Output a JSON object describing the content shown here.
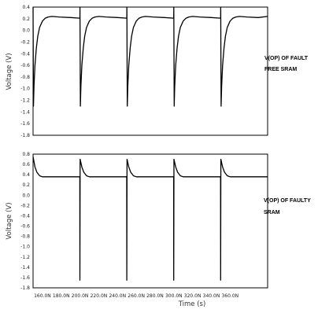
{
  "chart_data": [
    {
      "type": "line",
      "ylabel": "Voltage (V)",
      "ylim": [
        -1.8,
        0.4
      ],
      "yticks": [
        "0.4",
        "0.2",
        "0.0",
        "-0.2",
        "-0.4",
        "-0.6",
        "-0.8",
        "-1.0",
        "-1.2",
        "-1.4",
        "-1.6",
        "-1.8"
      ],
      "xlim_ns": [
        150,
        400
      ],
      "annotation": [
        "V(OP) OF FAULT",
        "FREE SRAM"
      ],
      "series": [
        {
          "color": "#000000",
          "x_ns": [
            150.0,
            150.4,
            151.0,
            152.0,
            153.5,
            155.0,
            157.0,
            160.0,
            163.0,
            166.0,
            170.0,
            178.0,
            190.0,
            199.9,
            200.0,
            200.4,
            201.0,
            202.0,
            203.5,
            205.0,
            207.0,
            210.0,
            213.0,
            216.0,
            220.0,
            228.0,
            240.0,
            249.9,
            250.0,
            250.4,
            251.0,
            252.0,
            253.5,
            255.0,
            257.0,
            260.0,
            263.0,
            266.0,
            270.0,
            278.0,
            290.0,
            299.9,
            300.0,
            300.4,
            301.0,
            302.0,
            303.5,
            305.0,
            307.0,
            310.0,
            313.0,
            316.0,
            320.0,
            328.0,
            340.0,
            349.9,
            350.0,
            350.4,
            351.0,
            352.0,
            353.5,
            355.0,
            357.0,
            360.0,
            363.0,
            366.0,
            370.0,
            378.0,
            390.0,
            400.0
          ],
          "y": [
            0.4,
            -1.3,
            -0.95,
            -0.6,
            -0.3,
            -0.1,
            0.05,
            0.16,
            0.21,
            0.23,
            0.24,
            0.23,
            0.22,
            0.21,
            0.4,
            -1.3,
            -0.95,
            -0.6,
            -0.3,
            -0.1,
            0.05,
            0.16,
            0.21,
            0.23,
            0.24,
            0.23,
            0.22,
            0.21,
            0.4,
            -1.3,
            -0.95,
            -0.6,
            -0.3,
            -0.1,
            0.05,
            0.16,
            0.21,
            0.23,
            0.24,
            0.23,
            0.22,
            0.21,
            0.4,
            -1.3,
            -0.95,
            -0.6,
            -0.3,
            -0.1,
            0.05,
            0.16,
            0.21,
            0.23,
            0.24,
            0.23,
            0.22,
            0.21,
            0.4,
            -1.3,
            -0.95,
            -0.6,
            -0.3,
            -0.1,
            0.05,
            0.16,
            0.21,
            0.23,
            0.24,
            0.23,
            0.22,
            0.24
          ]
        }
      ]
    },
    {
      "type": "line",
      "ylabel": "Voltage (V)",
      "xlabel": "Time (s)",
      "ylim": [
        -1.8,
        0.8
      ],
      "yticks": [
        "0.8",
        "0.6",
        "0.4",
        "0.2",
        "0.0",
        "-0.2",
        "-0.4",
        "-0.6",
        "-0.8",
        "-1.0",
        "-1.2",
        "-1.4",
        "-1.6",
        "-1.8"
      ],
      "xlim_ns": [
        150,
        400
      ],
      "xticks_ns": [
        160,
        180,
        200,
        220,
        240,
        260,
        280,
        300,
        320,
        340,
        360
      ],
      "xticklabels": [
        "160.0N",
        "180.0N",
        "200.0N",
        "220.0N",
        "240.0N",
        "260.0N",
        "280.0N",
        "300.0N",
        "320.0N",
        "340.0N",
        "360.0N"
      ],
      "annotation": [
        "V(OP) OF FAULTY",
        "SRAM"
      ],
      "series": [
        {
          "color": "#000000",
          "x_ns": [
            150.0,
            152.0,
            154.0,
            157.0,
            160.0,
            170.0,
            180.0,
            190.0,
            199.8,
            199.9,
            200.2,
            202.0,
            204.0,
            207.0,
            210.0,
            220.0,
            230.0,
            240.0,
            249.8,
            249.9,
            250.2,
            252.0,
            254.0,
            257.0,
            260.0,
            270.0,
            280.0,
            290.0,
            299.8,
            299.9,
            300.2,
            302.0,
            304.0,
            307.0,
            310.0,
            320.0,
            330.0,
            340.0,
            349.8,
            349.9,
            350.2,
            352.0,
            354.0,
            357.0,
            360.0,
            370.0,
            380.0,
            390.0,
            400.0
          ],
          "y": [
            0.75,
            0.55,
            0.45,
            0.38,
            0.36,
            0.36,
            0.36,
            0.36,
            0.36,
            -1.65,
            0.7,
            0.55,
            0.45,
            0.38,
            0.36,
            0.36,
            0.36,
            0.36,
            0.36,
            -1.65,
            0.7,
            0.55,
            0.45,
            0.38,
            0.36,
            0.36,
            0.36,
            0.36,
            0.36,
            -1.65,
            0.7,
            0.55,
            0.45,
            0.38,
            0.36,
            0.36,
            0.36,
            0.36,
            0.36,
            -1.65,
            0.7,
            0.55,
            0.45,
            0.38,
            0.36,
            0.36,
            0.36,
            0.36,
            0.36
          ]
        }
      ]
    }
  ]
}
